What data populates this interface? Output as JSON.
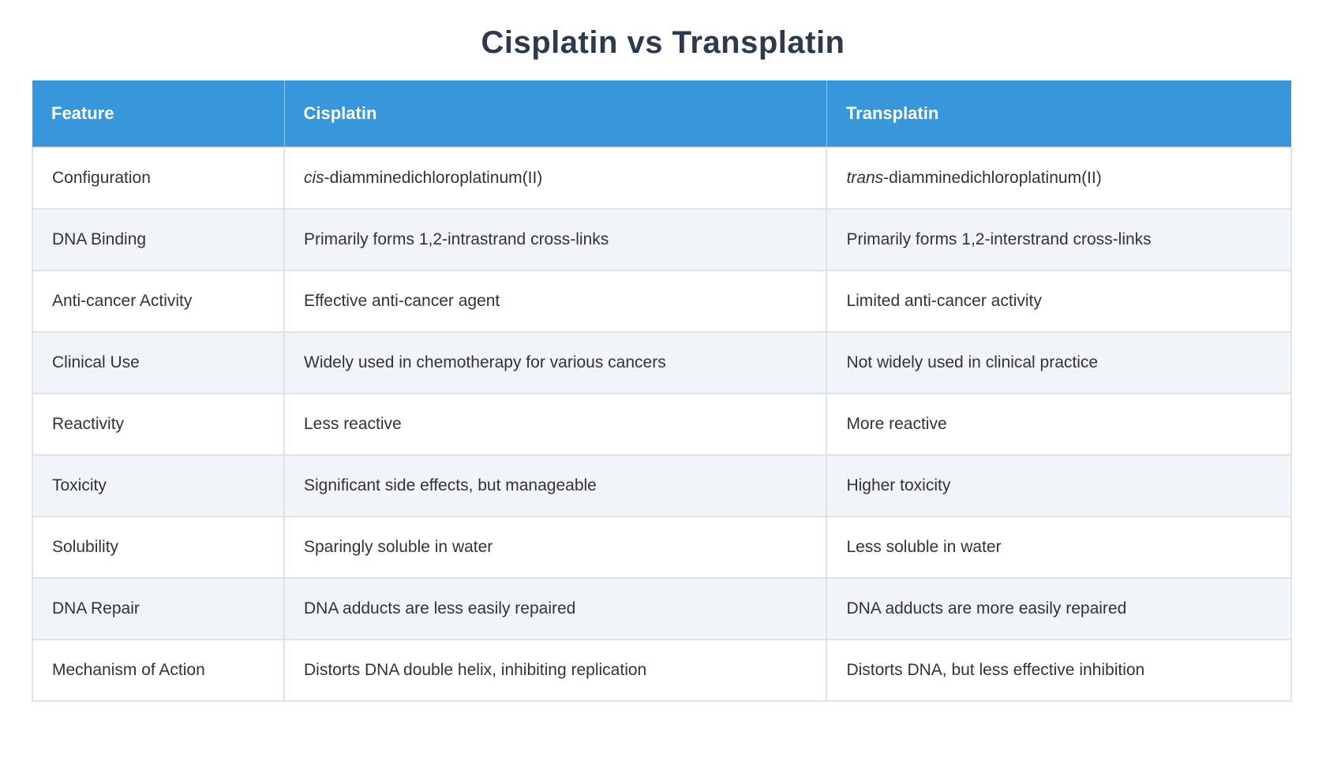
{
  "page": {
    "title": "Cisplatin vs Transplatin"
  },
  "colors": {
    "header_bg": "#3897db",
    "header_text": "#ffffff",
    "stripe_bg": "#f1f4f8",
    "row_bg": "#ffffff",
    "border": "#e2e2e2",
    "title_text": "#2c3a4e",
    "cell_text": "#333333"
  },
  "table": {
    "columns": [
      {
        "label": "Feature"
      },
      {
        "label": "Cisplatin"
      },
      {
        "label": "Transplatin"
      }
    ],
    "rows": [
      {
        "feature": "Configuration",
        "cisplatin": [
          {
            "text": "cis",
            "italic": true
          },
          {
            "text": "-diamminedichloroplatinum(II)",
            "italic": false
          }
        ],
        "transplatin": [
          {
            "text": "trans",
            "italic": true
          },
          {
            "text": "-diamminedichloroplatinum(II)",
            "italic": false
          }
        ]
      },
      {
        "feature": "DNA Binding",
        "cisplatin": "Primarily forms 1,2-intrastrand cross-links",
        "transplatin": "Primarily forms 1,2-interstrand cross-links"
      },
      {
        "feature": "Anti-cancer Activity",
        "cisplatin": "Effective anti-cancer agent",
        "transplatin": "Limited anti-cancer activity"
      },
      {
        "feature": "Clinical Use",
        "cisplatin": "Widely used in chemotherapy for various cancers",
        "transplatin": "Not widely used in clinical practice"
      },
      {
        "feature": "Reactivity",
        "cisplatin": "Less reactive",
        "transplatin": "More reactive"
      },
      {
        "feature": "Toxicity",
        "cisplatin": "Significant side effects, but manageable",
        "transplatin": "Higher toxicity"
      },
      {
        "feature": "Solubility",
        "cisplatin": "Sparingly soluble in water",
        "transplatin": "Less soluble in water"
      },
      {
        "feature": "DNA Repair",
        "cisplatin": "DNA adducts are less easily repaired",
        "transplatin": "DNA adducts are more easily repaired"
      },
      {
        "feature": "Mechanism of Action",
        "cisplatin": "Distorts DNA double helix, inhibiting replication",
        "transplatin": "Distorts DNA, but less effective inhibition"
      }
    ]
  }
}
